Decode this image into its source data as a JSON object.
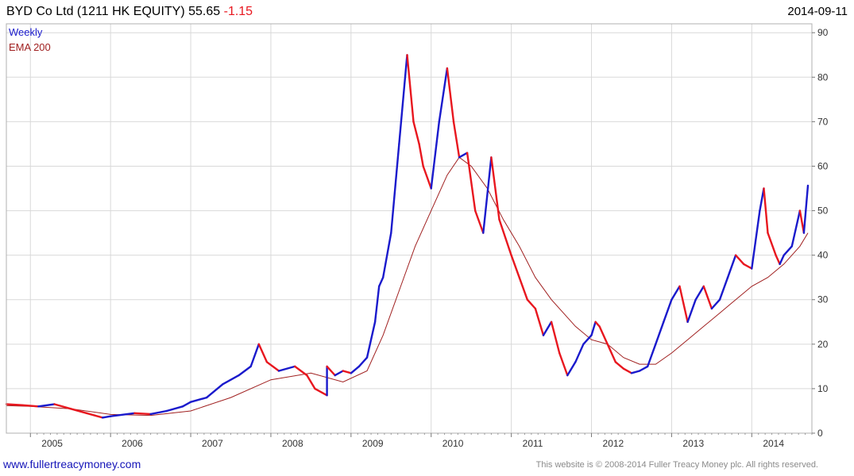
{
  "header": {
    "title": "BYD Co Ltd (1211 HK EQUITY) 55.65",
    "change": "-1.15",
    "date": "2014-09-11"
  },
  "legend": {
    "items": [
      {
        "label": "Weekly",
        "color": "#1a1acc"
      },
      {
        "label": "EMA 200",
        "color": "#a02020"
      }
    ]
  },
  "footer": {
    "left": "www.fullertreacymoney.com",
    "right": "This website is © 2008-2014 Fuller Treacy Money plc. All rights reserved."
  },
  "colors": {
    "up": "#1a1acc",
    "down": "#e8171f",
    "ema": "#a02020",
    "grid": "#d9d9d9"
  },
  "chart_data": {
    "type": "line",
    "xlim": [
      2004.7,
      2014.75
    ],
    "ylim": [
      0,
      92
    ],
    "yticks": [
      0,
      10,
      20,
      30,
      40,
      50,
      60,
      70,
      80,
      90
    ],
    "xticks": [
      "2005",
      "2006",
      "2007",
      "2008",
      "2009",
      "2010",
      "2011",
      "2012",
      "2013",
      "2014"
    ],
    "grid": true,
    "legend_position": "top-left",
    "series": [
      {
        "name": "Weekly",
        "x": [
          2004.7,
          2004.9,
          2005.1,
          2005.3,
          2005.5,
          2005.7,
          2005.9,
          2006.0,
          2006.3,
          2006.5,
          2006.7,
          2006.9,
          2007.0,
          2007.2,
          2007.4,
          2007.6,
          2007.75,
          2007.85,
          2007.95,
          2008.1,
          2008.3,
          2008.45,
          2008.55,
          2008.7,
          2008.7,
          2008.8,
          2008.9,
          2009.0,
          2009.1,
          2009.2,
          2009.3,
          2009.35,
          2009.4,
          2009.5,
          2009.6,
          2009.7,
          2009.78,
          2009.85,
          2009.9,
          2010.0,
          2010.1,
          2010.2,
          2010.28,
          2010.35,
          2010.45,
          2010.55,
          2010.65,
          2010.75,
          2010.85,
          2011.0,
          2011.1,
          2011.2,
          2011.3,
          2011.4,
          2011.5,
          2011.6,
          2011.7,
          2011.8,
          2011.9,
          2012.0,
          2012.05,
          2012.1,
          2012.2,
          2012.3,
          2012.4,
          2012.5,
          2012.6,
          2012.7,
          2012.8,
          2012.9,
          2013.0,
          2013.1,
          2013.2,
          2013.3,
          2013.4,
          2013.5,
          2013.6,
          2013.7,
          2013.8,
          2013.9,
          2014.0,
          2014.1,
          2014.15,
          2014.2,
          2014.3,
          2014.35,
          2014.4,
          2014.5,
          2014.6,
          2014.65,
          2014.7
        ],
        "values": [
          6.5,
          6.3,
          6.0,
          6.5,
          5.5,
          4.5,
          3.5,
          3.8,
          4.5,
          4.3,
          5.0,
          6.0,
          7.0,
          8.0,
          11.0,
          13.0,
          15.0,
          20.0,
          16.0,
          14.0,
          15.0,
          13.0,
          10.0,
          8.5,
          15.0,
          13.0,
          14.0,
          13.5,
          15.0,
          17.0,
          25.0,
          33.0,
          35.0,
          45.0,
          65.0,
          85.0,
          70.0,
          65.0,
          60.0,
          55.0,
          70.0,
          82.0,
          70.0,
          62.0,
          63.0,
          50.0,
          45.0,
          62.0,
          48.0,
          40.0,
          35.0,
          30.0,
          28.0,
          22.0,
          25.0,
          18.0,
          13.0,
          16.0,
          20.0,
          22.0,
          25.0,
          24.0,
          20.0,
          16.0,
          14.5,
          13.5,
          14.0,
          15.0,
          20.0,
          25.0,
          30.0,
          33.0,
          25.0,
          30.0,
          33.0,
          28.0,
          30.0,
          35.0,
          40.0,
          38.0,
          37.0,
          50.0,
          55.0,
          45.0,
          40.0,
          38.0,
          40.0,
          42.0,
          50.0,
          45.0,
          55.65
        ]
      },
      {
        "name": "EMA 200",
        "x": [
          2004.7,
          2005.0,
          2005.5,
          2006.0,
          2006.5,
          2007.0,
          2007.5,
          2008.0,
          2008.5,
          2008.9,
          2009.2,
          2009.4,
          2009.6,
          2009.8,
          2010.0,
          2010.2,
          2010.35,
          2010.5,
          2010.7,
          2010.9,
          2011.1,
          2011.3,
          2011.5,
          2011.8,
          2012.0,
          2012.2,
          2012.4,
          2012.6,
          2012.8,
          2013.0,
          2013.2,
          2013.4,
          2013.6,
          2013.8,
          2014.0,
          2014.2,
          2014.4,
          2014.6,
          2014.7
        ],
        "values": [
          6.2,
          6.0,
          5.5,
          4.2,
          4.0,
          5.0,
          8.0,
          12.0,
          13.5,
          11.5,
          14.0,
          22.0,
          32.0,
          42.0,
          50.0,
          58.0,
          62.0,
          60.0,
          55.0,
          48.0,
          42.0,
          35.0,
          30.0,
          24.0,
          21.0,
          20.0,
          17.0,
          15.5,
          15.5,
          18.0,
          21.0,
          24.0,
          27.0,
          30.0,
          33.0,
          35.0,
          38.0,
          42.0,
          45.0
        ]
      }
    ]
  }
}
